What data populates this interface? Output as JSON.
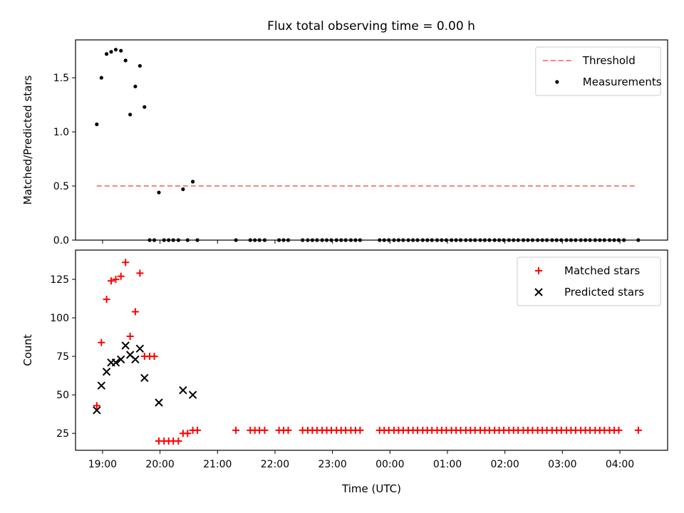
{
  "figure_title": "Flux total observing time = 0.00 h",
  "chart_data": [
    {
      "type": "scatter",
      "panel": "top",
      "ylabel": "Matched/Predicted stars",
      "xlabel": "",
      "x_unit": "UTC hours (values past 24 are next day)",
      "xlim": [
        18.53,
        28.83
      ],
      "ylim": [
        0,
        1.85
      ],
      "y_ticks": [
        0.0,
        0.5,
        1.0,
        1.5
      ],
      "y_tick_labels": [
        "0.0",
        "0.5",
        "1.0",
        "1.5"
      ],
      "grid": false,
      "legend_position": "top-right",
      "threshold": {
        "name": "Threshold",
        "value": 0.5,
        "x_start": 18.9,
        "x_end": 28.3,
        "color": "#ff8080",
        "style": "dashed"
      },
      "series": [
        {
          "name": "Measurements",
          "color": "#000000",
          "marker": "dot",
          "points": [
            [
              18.9,
              1.07
            ],
            [
              18.98,
              1.5
            ],
            [
              19.07,
              1.72
            ],
            [
              19.15,
              1.74
            ],
            [
              19.23,
              1.76
            ],
            [
              19.32,
              1.75
            ],
            [
              19.4,
              1.66
            ],
            [
              19.48,
              1.16
            ],
            [
              19.57,
              1.42
            ],
            [
              19.65,
              1.61
            ],
            [
              19.73,
              1.23
            ],
            [
              19.82,
              0.0
            ],
            [
              19.9,
              0.0
            ],
            [
              19.98,
              0.44
            ],
            [
              20.07,
              0.0
            ],
            [
              20.15,
              0.0
            ],
            [
              20.23,
              0.0
            ],
            [
              20.32,
              0.0
            ],
            [
              20.4,
              0.47
            ],
            [
              20.48,
              0.0
            ],
            [
              20.57,
              0.54
            ],
            [
              20.65,
              0.0
            ],
            [
              21.32,
              0.0
            ],
            [
              21.57,
              0.0
            ],
            [
              21.65,
              0.0
            ],
            [
              21.73,
              0.0
            ],
            [
              21.82,
              0.0
            ],
            [
              22.07,
              0.0
            ],
            [
              22.15,
              0.0
            ],
            [
              22.23,
              0.0
            ],
            [
              22.48,
              0.0
            ],
            [
              22.57,
              0.0
            ],
            [
              22.65,
              0.0
            ],
            [
              22.73,
              0.0
            ],
            [
              22.82,
              0.0
            ],
            [
              22.9,
              0.0
            ],
            [
              22.98,
              0.0
            ],
            [
              23.07,
              0.0
            ],
            [
              23.15,
              0.0
            ],
            [
              23.23,
              0.0
            ],
            [
              23.32,
              0.0
            ],
            [
              23.4,
              0.0
            ],
            [
              23.48,
              0.0
            ],
            [
              23.82,
              0.0
            ],
            [
              23.9,
              0.0
            ],
            [
              23.98,
              0.0
            ],
            [
              24.07,
              0.0
            ],
            [
              24.15,
              0.0
            ],
            [
              24.23,
              0.0
            ],
            [
              24.32,
              0.0
            ],
            [
              24.4,
              0.0
            ],
            [
              24.48,
              0.0
            ],
            [
              24.57,
              0.0
            ],
            [
              24.65,
              0.0
            ],
            [
              24.73,
              0.0
            ],
            [
              24.82,
              0.0
            ],
            [
              24.9,
              0.0
            ],
            [
              24.98,
              0.0
            ],
            [
              25.07,
              0.0
            ],
            [
              25.15,
              0.0
            ],
            [
              25.23,
              0.0
            ],
            [
              25.32,
              0.0
            ],
            [
              25.4,
              0.0
            ],
            [
              25.48,
              0.0
            ],
            [
              25.57,
              0.0
            ],
            [
              25.65,
              0.0
            ],
            [
              25.73,
              0.0
            ],
            [
              25.82,
              0.0
            ],
            [
              25.9,
              0.0
            ],
            [
              25.98,
              0.0
            ],
            [
              26.07,
              0.0
            ],
            [
              26.15,
              0.0
            ],
            [
              26.23,
              0.0
            ],
            [
              26.32,
              0.0
            ],
            [
              26.4,
              0.0
            ],
            [
              26.48,
              0.0
            ],
            [
              26.57,
              0.0
            ],
            [
              26.65,
              0.0
            ],
            [
              26.73,
              0.0
            ],
            [
              26.82,
              0.0
            ],
            [
              26.9,
              0.0
            ],
            [
              26.98,
              0.0
            ],
            [
              27.07,
              0.0
            ],
            [
              27.15,
              0.0
            ],
            [
              27.23,
              0.0
            ],
            [
              27.32,
              0.0
            ],
            [
              27.4,
              0.0
            ],
            [
              27.48,
              0.0
            ],
            [
              27.57,
              0.0
            ],
            [
              27.65,
              0.0
            ],
            [
              27.73,
              0.0
            ],
            [
              27.82,
              0.0
            ],
            [
              27.9,
              0.0
            ],
            [
              27.98,
              0.0
            ],
            [
              28.07,
              0.0
            ],
            [
              28.32,
              0.0
            ]
          ]
        }
      ]
    },
    {
      "type": "scatter",
      "panel": "bottom",
      "ylabel": "Count",
      "xlabel": "Time (UTC)",
      "x_unit": "UTC hours (values past 24 are next day)",
      "xlim": [
        18.53,
        28.83
      ],
      "ylim": [
        14,
        144
      ],
      "y_ticks": [
        25,
        50,
        75,
        100,
        125
      ],
      "y_tick_labels": [
        "25",
        "50",
        "75",
        "100",
        "125"
      ],
      "x_ticks": [
        19,
        20,
        21,
        22,
        23,
        24,
        25,
        26,
        27,
        28
      ],
      "x_tick_labels": [
        "19:00",
        "20:00",
        "21:00",
        "22:00",
        "23:00",
        "00:00",
        "01:00",
        "02:00",
        "03:00",
        "04:00"
      ],
      "grid": false,
      "legend_position": "top-right",
      "series": [
        {
          "name": "Matched stars",
          "color": "#ff0000",
          "marker": "plus",
          "points": [
            [
              18.9,
              43
            ],
            [
              18.98,
              84
            ],
            [
              19.07,
              112
            ],
            [
              19.15,
              124
            ],
            [
              19.23,
              125
            ],
            [
              19.32,
              127
            ],
            [
              19.4,
              136
            ],
            [
              19.48,
              88
            ],
            [
              19.57,
              104
            ],
            [
              19.65,
              129
            ],
            [
              19.73,
              75
            ],
            [
              19.82,
              75
            ],
            [
              19.9,
              75
            ],
            [
              19.98,
              20
            ],
            [
              20.07,
              20
            ],
            [
              20.15,
              20
            ],
            [
              20.23,
              20
            ],
            [
              20.32,
              20
            ],
            [
              20.4,
              25
            ],
            [
              20.48,
              25
            ],
            [
              20.57,
              27
            ],
            [
              20.65,
              27
            ],
            [
              21.32,
              27
            ],
            [
              21.57,
              27
            ],
            [
              21.65,
              27
            ],
            [
              21.73,
              27
            ],
            [
              21.82,
              27
            ],
            [
              22.07,
              27
            ],
            [
              22.15,
              27
            ],
            [
              22.23,
              27
            ],
            [
              22.48,
              27
            ],
            [
              22.57,
              27
            ],
            [
              22.65,
              27
            ],
            [
              22.73,
              27
            ],
            [
              22.82,
              27
            ],
            [
              22.9,
              27
            ],
            [
              22.98,
              27
            ],
            [
              23.07,
              27
            ],
            [
              23.15,
              27
            ],
            [
              23.23,
              27
            ],
            [
              23.32,
              27
            ],
            [
              23.4,
              27
            ],
            [
              23.48,
              27
            ],
            [
              23.82,
              27
            ],
            [
              23.9,
              27
            ],
            [
              23.98,
              27
            ],
            [
              24.07,
              27
            ],
            [
              24.15,
              27
            ],
            [
              24.23,
              27
            ],
            [
              24.32,
              27
            ],
            [
              24.4,
              27
            ],
            [
              24.48,
              27
            ],
            [
              24.57,
              27
            ],
            [
              24.65,
              27
            ],
            [
              24.73,
              27
            ],
            [
              24.82,
              27
            ],
            [
              24.9,
              27
            ],
            [
              24.98,
              27
            ],
            [
              25.07,
              27
            ],
            [
              25.15,
              27
            ],
            [
              25.23,
              27
            ],
            [
              25.32,
              27
            ],
            [
              25.4,
              27
            ],
            [
              25.48,
              27
            ],
            [
              25.57,
              27
            ],
            [
              25.65,
              27
            ],
            [
              25.73,
              27
            ],
            [
              25.82,
              27
            ],
            [
              25.9,
              27
            ],
            [
              25.98,
              27
            ],
            [
              26.07,
              27
            ],
            [
              26.15,
              27
            ],
            [
              26.23,
              27
            ],
            [
              26.32,
              27
            ],
            [
              26.4,
              27
            ],
            [
              26.48,
              27
            ],
            [
              26.57,
              27
            ],
            [
              26.65,
              27
            ],
            [
              26.73,
              27
            ],
            [
              26.82,
              27
            ],
            [
              26.9,
              27
            ],
            [
              26.98,
              27
            ],
            [
              27.07,
              27
            ],
            [
              27.15,
              27
            ],
            [
              27.23,
              27
            ],
            [
              27.32,
              27
            ],
            [
              27.4,
              27
            ],
            [
              27.48,
              27
            ],
            [
              27.57,
              27
            ],
            [
              27.65,
              27
            ],
            [
              27.73,
              27
            ],
            [
              27.82,
              27
            ],
            [
              27.9,
              27
            ],
            [
              27.98,
              27
            ],
            [
              28.32,
              27
            ]
          ]
        },
        {
          "name": "Predicted stars",
          "color": "#000000",
          "marker": "x",
          "points": [
            [
              18.9,
              40
            ],
            [
              18.98,
              56
            ],
            [
              19.07,
              65
            ],
            [
              19.15,
              71
            ],
            [
              19.23,
              71
            ],
            [
              19.32,
              73
            ],
            [
              19.4,
              82
            ],
            [
              19.48,
              76
            ],
            [
              19.57,
              73
            ],
            [
              19.65,
              80
            ],
            [
              19.73,
              61
            ],
            [
              19.98,
              45
            ],
            [
              20.4,
              53
            ],
            [
              20.57,
              50
            ]
          ]
        }
      ]
    }
  ]
}
